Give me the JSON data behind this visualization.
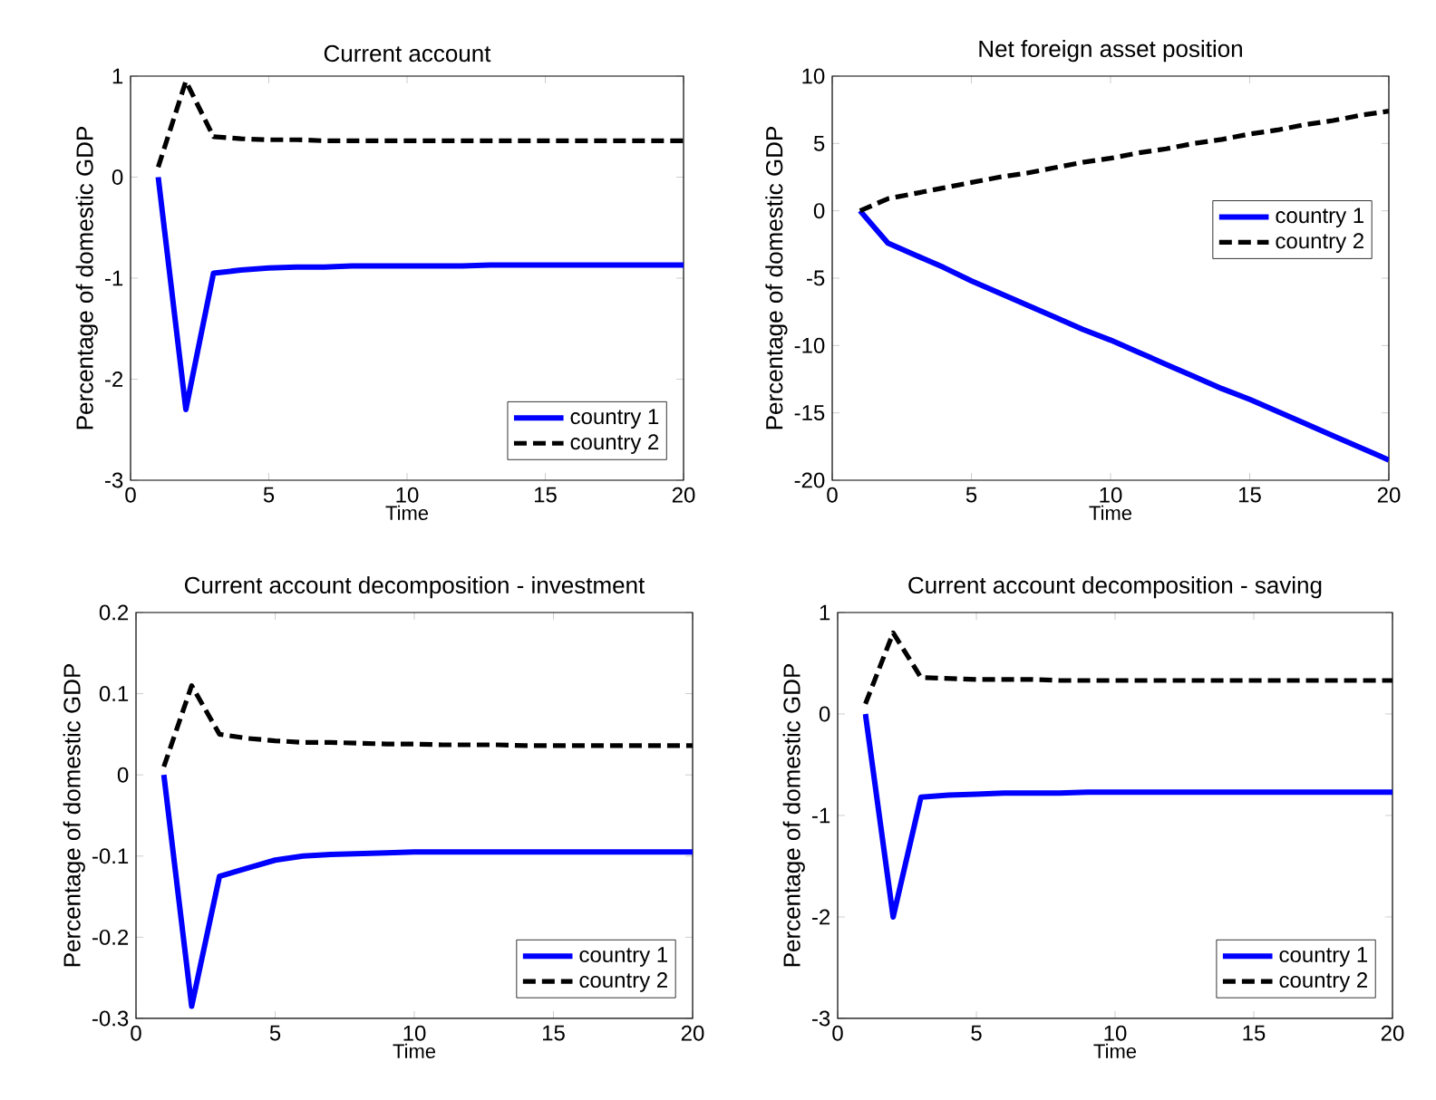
{
  "chart_data": [
    {
      "type": "line",
      "title": "Current account",
      "xlabel": "Time",
      "ylabel": "Percentage of domestic GDP",
      "x": [
        1,
        2,
        3,
        4,
        5,
        6,
        7,
        8,
        9,
        10,
        11,
        12,
        13,
        14,
        15,
        16,
        17,
        18,
        19,
        20
      ],
      "xlim": [
        0,
        20
      ],
      "xticks": [
        0,
        5,
        10,
        15,
        20
      ],
      "ylim": [
        -3,
        1
      ],
      "yticks": [
        -3,
        -2,
        -1,
        0,
        1
      ],
      "legend": "bottom right",
      "grid": false,
      "series": [
        {
          "name": "country 1",
          "color": "#0000ff",
          "line_style": "solid",
          "values": [
            0,
            -2.3,
            -0.95,
            -0.92,
            -0.9,
            -0.89,
            -0.89,
            -0.88,
            -0.88,
            -0.88,
            -0.88,
            -0.88,
            -0.87,
            -0.87,
            -0.87,
            -0.87,
            -0.87,
            -0.87,
            -0.87,
            -0.87
          ]
        },
        {
          "name": "country 2",
          "color": "#000000",
          "line_style": "dashed",
          "values": [
            0.1,
            0.95,
            0.4,
            0.38,
            0.37,
            0.37,
            0.36,
            0.36,
            0.36,
            0.36,
            0.36,
            0.36,
            0.36,
            0.36,
            0.36,
            0.36,
            0.36,
            0.36,
            0.36,
            0.36
          ]
        }
      ]
    },
    {
      "type": "line",
      "title": "Net foreign asset position",
      "xlabel": "Time",
      "ylabel": "Percentage of domestic GDP",
      "x": [
        1,
        2,
        3,
        4,
        5,
        6,
        7,
        8,
        9,
        10,
        11,
        12,
        13,
        14,
        15,
        16,
        17,
        18,
        19,
        20
      ],
      "xlim": [
        0,
        20
      ],
      "xticks": [
        0,
        5,
        10,
        15,
        20
      ],
      "ylim": [
        -20,
        10
      ],
      "yticks": [
        -20,
        -15,
        -10,
        -5,
        0,
        5,
        10
      ],
      "legend": "right",
      "grid": false,
      "series": [
        {
          "name": "country 1",
          "color": "#0000ff",
          "line_style": "solid",
          "values": [
            0,
            -2.4,
            -3.3,
            -4.2,
            -5.2,
            -6.1,
            -7.0,
            -7.9,
            -8.8,
            -9.6,
            -10.5,
            -11.4,
            -12.3,
            -13.2,
            -14.0,
            -14.9,
            -15.8,
            -16.7,
            -17.6,
            -18.5
          ]
        },
        {
          "name": "country 2",
          "color": "#000000",
          "line_style": "dashed",
          "values": [
            0,
            0.9,
            1.3,
            1.7,
            2.1,
            2.5,
            2.8,
            3.2,
            3.6,
            3.9,
            4.3,
            4.6,
            5.0,
            5.3,
            5.7,
            6.0,
            6.4,
            6.7,
            7.1,
            7.4
          ]
        }
      ]
    },
    {
      "type": "line",
      "title": "Current account decomposition - investment",
      "xlabel": "Time",
      "ylabel": "Percentage of domestic GDP",
      "x": [
        1,
        2,
        3,
        4,
        5,
        6,
        7,
        8,
        9,
        10,
        11,
        12,
        13,
        14,
        15,
        16,
        17,
        18,
        19,
        20
      ],
      "xlim": [
        0,
        20
      ],
      "xticks": [
        0,
        5,
        10,
        15,
        20
      ],
      "ylim": [
        -0.3,
        0.2
      ],
      "yticks": [
        -0.3,
        -0.2,
        -0.1,
        0,
        0.1,
        0.2
      ],
      "legend": "bottom right",
      "grid": false,
      "series": [
        {
          "name": "country 1",
          "color": "#0000ff",
          "line_style": "solid",
          "values": [
            0,
            -0.285,
            -0.125,
            -0.115,
            -0.105,
            -0.1,
            -0.098,
            -0.097,
            -0.096,
            -0.095,
            -0.095,
            -0.095,
            -0.095,
            -0.095,
            -0.095,
            -0.095,
            -0.095,
            -0.095,
            -0.095,
            -0.095
          ]
        },
        {
          "name": "country 2",
          "color": "#000000",
          "line_style": "dashed",
          "values": [
            0.01,
            0.11,
            0.05,
            0.045,
            0.042,
            0.04,
            0.04,
            0.039,
            0.038,
            0.038,
            0.037,
            0.037,
            0.037,
            0.036,
            0.036,
            0.036,
            0.036,
            0.036,
            0.036,
            0.036
          ]
        }
      ]
    },
    {
      "type": "line",
      "title": "Current account decomposition - saving",
      "xlabel": "Time",
      "ylabel": "Percentage of domestic GDP",
      "x": [
        1,
        2,
        3,
        4,
        5,
        6,
        7,
        8,
        9,
        10,
        11,
        12,
        13,
        14,
        15,
        16,
        17,
        18,
        19,
        20
      ],
      "xlim": [
        0,
        20
      ],
      "xticks": [
        0,
        5,
        10,
        15,
        20
      ],
      "ylim": [
        -3,
        1
      ],
      "yticks": [
        -3,
        -2,
        -1,
        0,
        1
      ],
      "legend": "bottom right",
      "grid": false,
      "series": [
        {
          "name": "country 1",
          "color": "#0000ff",
          "line_style": "solid",
          "values": [
            0,
            -2.0,
            -0.82,
            -0.8,
            -0.79,
            -0.78,
            -0.78,
            -0.78,
            -0.77,
            -0.77,
            -0.77,
            -0.77,
            -0.77,
            -0.77,
            -0.77,
            -0.77,
            -0.77,
            -0.77,
            -0.77,
            -0.77
          ]
        },
        {
          "name": "country 2",
          "color": "#000000",
          "line_style": "dashed",
          "values": [
            0.1,
            0.8,
            0.36,
            0.35,
            0.34,
            0.34,
            0.34,
            0.33,
            0.33,
            0.33,
            0.33,
            0.33,
            0.33,
            0.33,
            0.33,
            0.33,
            0.33,
            0.33,
            0.33,
            0.33
          ]
        }
      ]
    }
  ]
}
